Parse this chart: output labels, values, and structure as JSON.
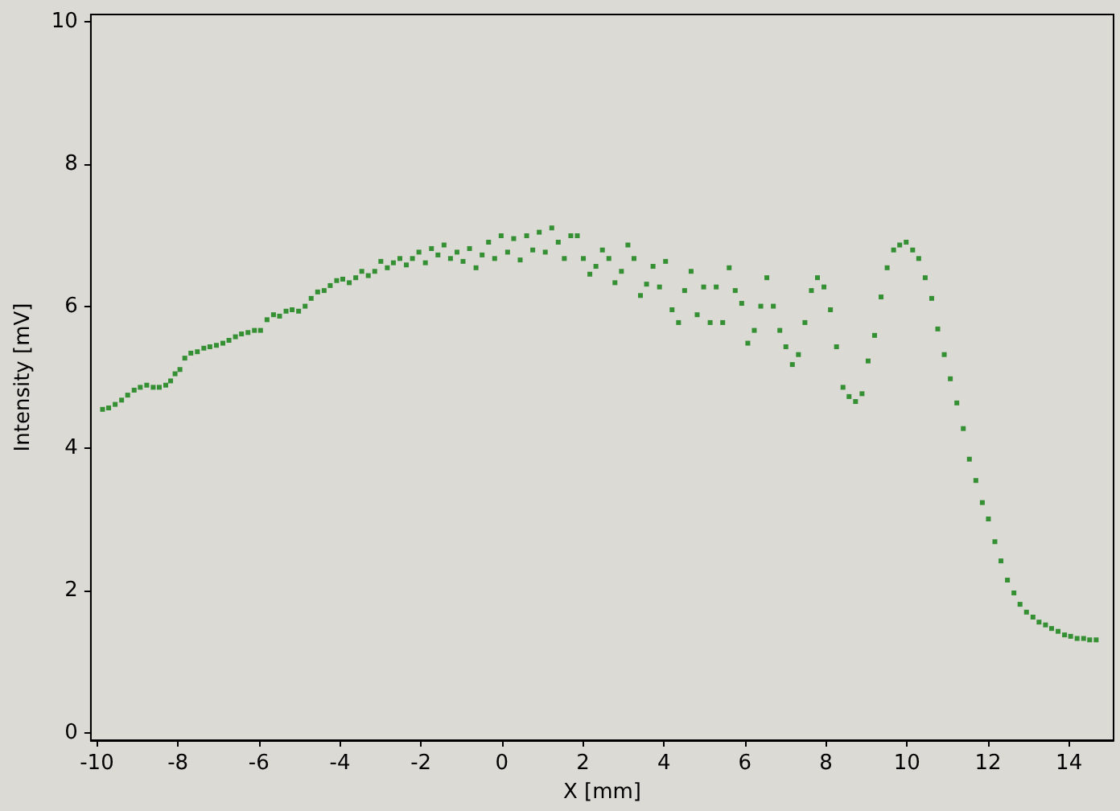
{
  "chart_data": {
    "type": "scatter",
    "xlabel": "X [mm]",
    "ylabel": "Intensity [mV]",
    "xlim": [
      -10.15,
      15.1
    ],
    "ylim": [
      -0.1,
      10.1
    ],
    "xticks": [
      -10,
      -8,
      -6,
      -4,
      -2,
      0,
      2,
      4,
      6,
      8,
      10,
      12,
      14
    ],
    "yticks": [
      0,
      2,
      4,
      6,
      8,
      10
    ],
    "grid": false,
    "marker": "square",
    "color": "#0a7d0a",
    "x": [
      -9.86,
      -9.71,
      -9.55,
      -9.39,
      -9.24,
      -9.08,
      -8.93,
      -8.77,
      -8.61,
      -8.46,
      -8.3,
      -8.18,
      -8.07,
      -7.95,
      -7.83,
      -7.68,
      -7.52,
      -7.36,
      -7.21,
      -7.05,
      -6.89,
      -6.74,
      -6.58,
      -6.43,
      -6.27,
      -6.11,
      -5.96,
      -5.8,
      -5.64,
      -5.49,
      -5.33,
      -5.18,
      -5.02,
      -4.86,
      -4.71,
      -4.55,
      -4.39,
      -4.24,
      -4.08,
      -3.93,
      -3.77,
      -3.61,
      -3.46,
      -3.3,
      -3.14,
      -2.99,
      -2.83,
      -2.68,
      -2.52,
      -2.36,
      -2.21,
      -2.05,
      -1.89,
      -1.74,
      -1.58,
      -1.43,
      -1.27,
      -1.11,
      -0.96,
      -0.8,
      -0.64,
      -0.49,
      -0.33,
      -0.18,
      -0.02,
      0.14,
      0.29,
      0.45,
      0.61,
      0.76,
      0.92,
      1.07,
      1.23,
      1.39,
      1.54,
      1.7,
      1.86,
      2.01,
      2.17,
      2.32,
      2.48,
      2.64,
      2.79,
      2.95,
      3.11,
      3.26,
      3.42,
      3.57,
      3.73,
      3.89,
      4.04,
      4.2,
      4.36,
      4.51,
      4.67,
      4.82,
      4.98,
      5.14,
      5.29,
      5.45,
      5.61,
      5.76,
      5.92,
      6.07,
      6.23,
      6.39,
      6.54,
      6.7,
      6.86,
      7.01,
      7.17,
      7.32,
      7.48,
      7.64,
      7.79,
      7.95,
      8.11,
      8.26,
      8.42,
      8.57,
      8.73,
      8.89,
      9.04,
      9.2,
      9.36,
      9.51,
      9.67,
      9.82,
      9.98,
      10.14,
      10.29,
      10.45,
      10.61,
      10.76,
      10.92,
      11.07,
      11.23,
      11.39,
      11.54,
      11.7,
      11.86,
      12.01,
      12.17,
      12.32,
      12.48,
      12.64,
      12.79,
      12.95,
      13.11,
      13.26,
      13.42,
      13.57,
      13.73,
      13.89,
      14.04,
      14.2,
      14.36,
      14.51,
      14.67
    ],
    "values": [
      4.55,
      4.57,
      4.62,
      4.68,
      4.75,
      4.82,
      4.86,
      4.89,
      4.86,
      4.86,
      4.89,
      4.95,
      5.05,
      5.11,
      5.27,
      5.34,
      5.36,
      5.41,
      5.43,
      5.45,
      5.48,
      5.52,
      5.57,
      5.61,
      5.63,
      5.66,
      5.66,
      5.81,
      5.88,
      5.86,
      5.93,
      5.95,
      5.93,
      6.0,
      6.11,
      6.2,
      6.22,
      6.29,
      6.36,
      6.38,
      6.33,
      6.4,
      6.49,
      6.43,
      6.49,
      6.63,
      6.54,
      6.61,
      6.67,
      6.58,
      6.67,
      6.76,
      6.61,
      6.81,
      6.72,
      6.86,
      6.67,
      6.76,
      6.63,
      6.81,
      6.54,
      6.72,
      6.9,
      6.67,
      6.99,
      6.76,
      6.95,
      6.65,
      6.99,
      6.79,
      7.04,
      6.76,
      7.1,
      6.9,
      6.67,
      6.99,
      6.99,
      6.67,
      6.45,
      6.56,
      6.79,
      6.67,
      6.33,
      6.49,
      6.86,
      6.67,
      6.15,
      6.31,
      6.56,
      6.27,
      6.63,
      5.95,
      5.77,
      6.22,
      6.49,
      5.88,
      6.27,
      5.77,
      6.27,
      5.77,
      6.54,
      6.22,
      6.04,
      5.48,
      5.66,
      6.0,
      6.4,
      6.0,
      5.66,
      5.43,
      5.18,
      5.32,
      5.77,
      6.22,
      6.4,
      6.27,
      5.95,
      5.43,
      4.86,
      4.73,
      4.66,
      4.77,
      5.23,
      5.59,
      6.13,
      6.54,
      6.79,
      6.86,
      6.9,
      6.79,
      6.67,
      6.4,
      6.11,
      5.68,
      5.32,
      4.98,
      4.64,
      4.28,
      3.85,
      3.55,
      3.24,
      3.01,
      2.69,
      2.42,
      2.15,
      1.97,
      1.81,
      1.7,
      1.63,
      1.56,
      1.52,
      1.47,
      1.43,
      1.38,
      1.36,
      1.33,
      1.33,
      1.31,
      1.31
    ]
  }
}
